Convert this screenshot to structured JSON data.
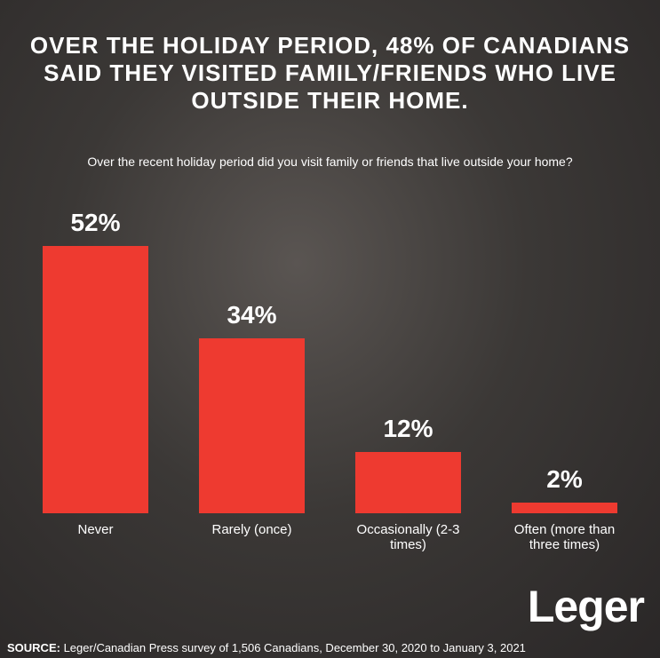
{
  "chart_data": {
    "type": "bar",
    "title": "OVER THE HOLIDAY PERIOD, 48% OF CANADIANS SAID THEY VISITED FAMILY/FRIENDS WHO LIVE OUTSIDE THEIR HOME.",
    "subtitle": "Over the recent holiday period did you visit family or friends that live outside your home?",
    "categories": [
      "Never",
      "Rarely (once)",
      "Occasionally (2-3 times)",
      "Often (more than three times)"
    ],
    "values": [
      52,
      34,
      12,
      2
    ],
    "value_labels": [
      "52%",
      "34%",
      "12%",
      "2%"
    ],
    "color": "#ee3a30",
    "source_label": "SOURCE:",
    "source": "Leger/Canadian Press survey of 1,506 Canadians, December 30, 2020 to January 3, 2021",
    "logo": "Leger"
  }
}
